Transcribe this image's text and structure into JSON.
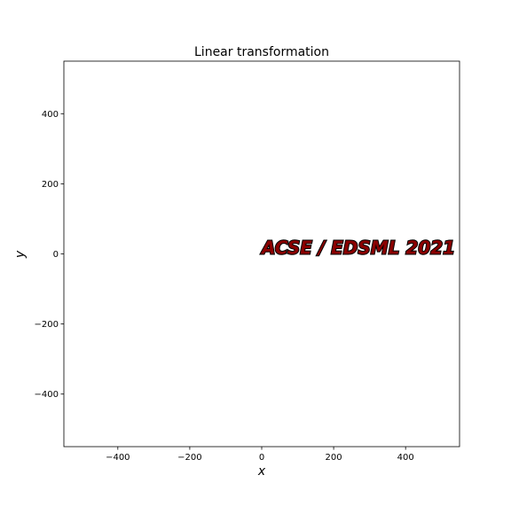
{
  "chart_data": {
    "type": "scatter",
    "title": "Linear transformation",
    "xlabel": "x",
    "ylabel": "y",
    "xlim": [
      -550,
      550
    ],
    "ylim": [
      -550,
      550
    ],
    "xticks": [
      -400,
      -200,
      0,
      200,
      400
    ],
    "xtick_labels": [
      "−400",
      "−200",
      "0",
      "200",
      "400"
    ],
    "yticks": [
      -400,
      -200,
      0,
      200,
      400
    ],
    "ytick_labels": [
      "−400",
      "−200",
      "0",
      "200",
      "400"
    ],
    "grid": false,
    "series": [],
    "annotations": [
      {
        "text": "ACSE / EDSML 2021",
        "x": 0,
        "y": 0,
        "fill_color": "#8b0000",
        "edge_color": "#000000"
      }
    ]
  }
}
